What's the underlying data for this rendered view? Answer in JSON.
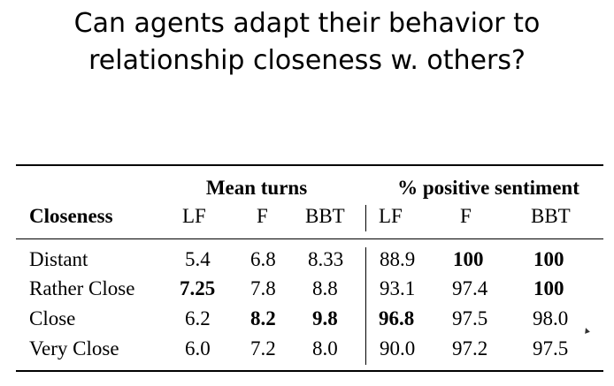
{
  "title": {
    "line1": "Can agents adapt their behavior to",
    "line2": "relationship closeness w. others?"
  },
  "table": {
    "group_headers": [
      "Mean turns",
      "% positive sentiment"
    ],
    "row_header": "Closeness",
    "columns": [
      "LF",
      "F",
      "BBT",
      "LF",
      "F",
      "BBT"
    ],
    "rows": [
      {
        "label": "Distant",
        "values": [
          "5.4",
          "6.8",
          "8.33",
          "88.9",
          "100",
          "100"
        ]
      },
      {
        "label": "Rather Close",
        "values": [
          "7.25",
          "7.8",
          "8.8",
          "93.1",
          "97.4",
          "100"
        ]
      },
      {
        "label": "Close",
        "values": [
          "6.2",
          "8.2",
          "9.8",
          "96.8",
          "97.5",
          "98.0"
        ]
      },
      {
        "label": "Very Close",
        "values": [
          "6.0",
          "7.2",
          "8.0",
          "90.0",
          "97.2",
          "97.5"
        ]
      }
    ]
  }
}
